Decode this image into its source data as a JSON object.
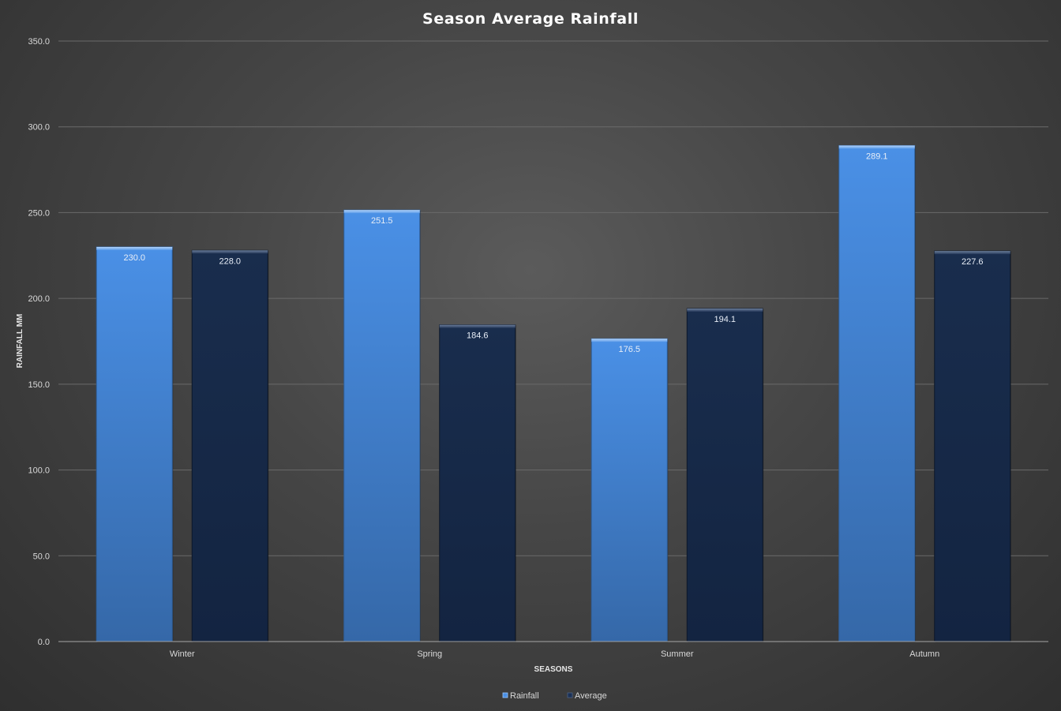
{
  "chart_data": {
    "type": "bar",
    "title": "Season Average Rainfall",
    "xlabel": "SEASONS",
    "ylabel": "RAINFALL MM",
    "categories": [
      "Winter",
      "Spring",
      "Summer",
      "Autumn"
    ],
    "series": [
      {
        "name": "Rainfall",
        "values": [
          230.0,
          251.5,
          176.5,
          289.1
        ],
        "color": "#3f85d8"
      },
      {
        "name": "Average",
        "values": [
          228.0,
          184.6,
          194.1,
          227.6
        ],
        "color": "#172a48"
      }
    ],
    "ylim": [
      0,
      350
    ],
    "yticks": [
      "0.0",
      "50.0",
      "100.0",
      "150.0",
      "200.0",
      "250.0",
      "300.0",
      "350.0"
    ],
    "grid": true,
    "legend_position": "bottom",
    "data_labels": true
  }
}
